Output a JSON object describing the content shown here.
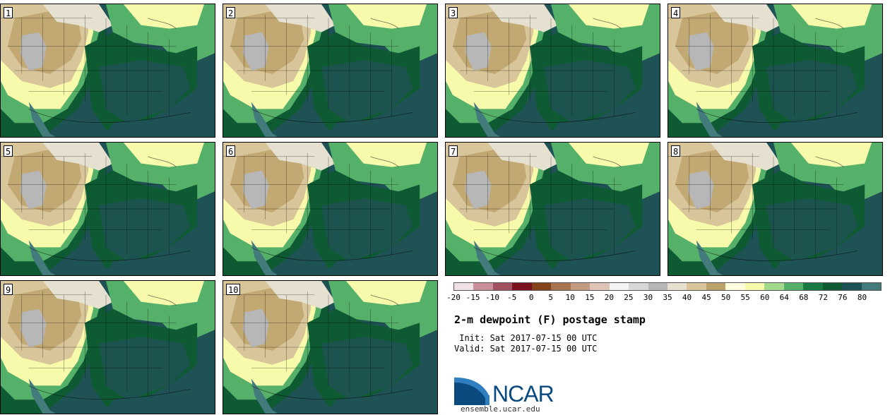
{
  "panels": [
    "1",
    "2",
    "3",
    "4",
    "5",
    "6",
    "7",
    "8",
    "9",
    "10"
  ],
  "colorbar": {
    "colors": [
      "#f0e1e5",
      "#c9909c",
      "#a35262",
      "#7a1220",
      "#84431a",
      "#a8744f",
      "#c49a81",
      "#dfc4b8",
      "#f4f4f4",
      "#d8d8d8",
      "#b7b7b7",
      "#e5e0cf",
      "#d9c59a",
      "#bca16a",
      "#ffffe0",
      "#f7f9ab",
      "#a3d98a",
      "#55b06a",
      "#1a7a44",
      "#0e5a33",
      "#1f5254",
      "#437a7c"
    ],
    "labels": [
      "-20",
      "-15",
      "-10",
      "-5",
      "0",
      "5",
      "10",
      "15",
      "20",
      "25",
      "30",
      "35",
      "40",
      "45",
      "50",
      "55",
      "60",
      "64",
      "68",
      "72",
      "76",
      "80"
    ]
  },
  "title": "2-m dewpoint (F) postage stamp",
  "init": " Init: Sat 2017-07-15 00 UTC",
  "valid": "Valid: Sat 2017-07-15 00 UTC",
  "logo": {
    "text": "NCAR",
    "site": "ensemble.ucar.edu"
  }
}
